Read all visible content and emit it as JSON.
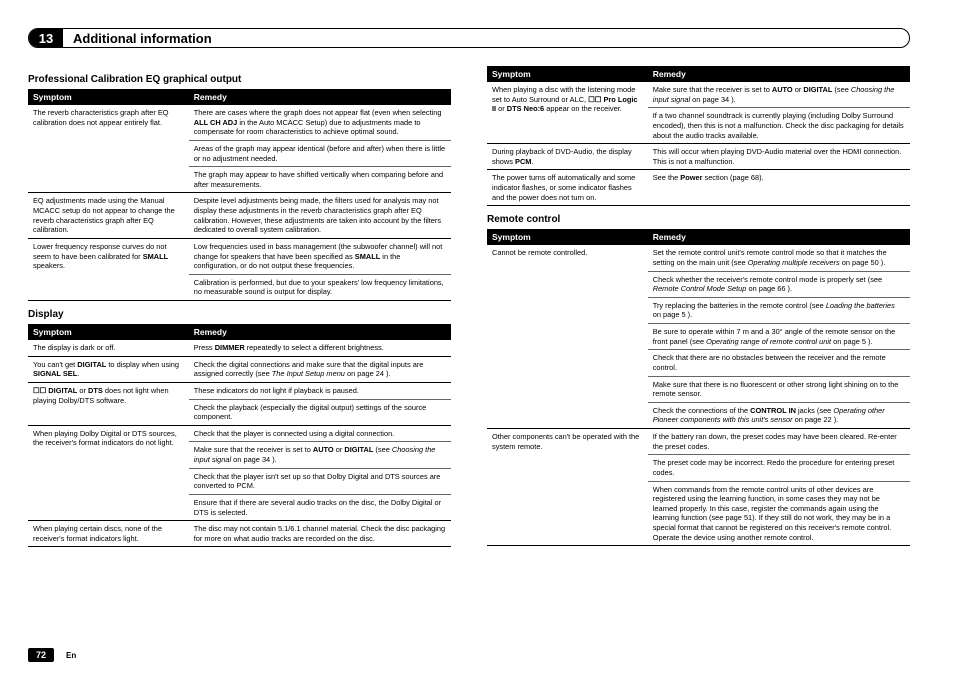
{
  "chapter": {
    "number": "13",
    "title": "Additional information"
  },
  "footer": {
    "page": "72",
    "lang": "En"
  },
  "headers": {
    "symptom": "Symptom",
    "remedy": "Remedy"
  },
  "sections": {
    "proCal": {
      "title": "Professional Calibration EQ graphical output",
      "rows": [
        {
          "s": "The reverb characteristics graph after EQ calibration does not appear entirely flat.",
          "r": [
            "There are cases where the graph does not appear flat (even when selecting <b>ALL CH ADJ</b> in the Auto MCACC Setup) due to adjustments made to compensate for room characteristics to achieve optimal sound.",
            "Areas of the graph may appear identical (before and after) when there is little or no adjustment needed.",
            "The graph may appear to have shifted vertically when comparing before and after measurements."
          ]
        },
        {
          "s": "EQ adjustments made using the Manual MCACC setup do not appear to change the reverb characteristics graph after EQ calibration.",
          "r": [
            "Despite level adjustments being made, the filters used for analysis may not display these adjustments in the reverb characteristics graph after EQ calibration. However, these adjustments are taken into account by the filters dedicated to overall system calibration."
          ]
        },
        {
          "s": "Lower frequency response curves do not seem to have been calibrated for <b>SMALL</b> speakers.",
          "r": [
            "Low frequencies used in bass management (the subwoofer channel) will not change for speakers that have been specified as <b>SMALL</b> in the configuration, or do not output these frequencies.",
            "Calibration is performed, but due to your speakers' low frequency limitations, no measurable sound is output for display."
          ]
        }
      ]
    },
    "display": {
      "title": "Display",
      "rows": [
        {
          "s": "The display is dark or off.",
          "r": [
            "Press <b>DIMMER</b> repeatedly to select a different brightness."
          ]
        },
        {
          "s": "You can't get <b>DIGITAL</b> to display when using <b>SIGNAL SEL</b>.",
          "r": [
            "Check the digital connections and make sure that the digital inputs are assigned correctly (see <span class=\"ital\">The Input Setup menu</span> on page 24 )."
          ]
        },
        {
          "s": "<b>☐☐ DIGITAL</b> or <b>DTS</b> does not light when playing Dolby/DTS software.",
          "r": [
            "These indicators do not light if playback is paused.",
            "Check the playback (especially the digital output) settings of the source component."
          ]
        },
        {
          "s": "When playing Dolby Digital or DTS sources, the receiver's format indicators do not light.",
          "r": [
            "Check that the player is connected using a digital connection.",
            "Make sure that the receiver is set to <b>AUTO</b> or <b>DIGITAL</b> (see <span class=\"ital\">Choosing the input signal</span> on page 34 ).",
            "Check that the player isn't set up so that Dolby Digital and DTS sources are converted to PCM.",
            "Ensure that if there are several audio tracks on the disc, the Dolby Digital or DTS is selected."
          ]
        },
        {
          "s": "When playing certain discs, none of the receiver's format indicators light.",
          "r": [
            "The disc may not contain 5.1/6.1 channel material. Check the disc packaging for more on what audio tracks are recorded on the disc."
          ]
        }
      ]
    },
    "cont": {
      "rows": [
        {
          "s": "When playing a disc with the listening mode set to Auto Surround or ALC, <b>☐☐ Pro Logic II</b> or <b>DTS Neo:6</b> appear on the receiver.",
          "r": [
            "Make sure that the receiver is set to <b>AUTO</b> or <b>DIGITAL</b> (see <span class=\"ital\">Choosing the input signal</span> on page 34 ).",
            "If a two channel soundtrack is currently playing (including Dolby Surround encoded), then this is not a malfunction. Check the disc packaging for details about the audio tracks available."
          ]
        },
        {
          "s": "During playback of DVD-Audio, the display shows <b>PCM</b>.",
          "r": [
            "This will occur when playing DVD-Audio material over the HDMI connection. This is not a malfunction."
          ]
        },
        {
          "s": "The power turns off automatically and some indicator flashes, or some indicator flashes and the power does not turn on.",
          "r": [
            "See the <b>Power</b> section (page 68)."
          ]
        }
      ]
    },
    "remote": {
      "title": "Remote control",
      "rows": [
        {
          "s": "Cannot be remote controlled.",
          "r": [
            "Set the remote control unit's remote control mode so that it matches the setting on the main unit (see <span class=\"ital\">Operating multiple receivers</span> on page 50 ).",
            "Check whether the receiver's remote control mode is properly set (see <span class=\"ital\">Remote Control Mode Setup</span> on page 66 ).",
            "Try replacing the batteries in the remote control (see <span class=\"ital\">Loading the batteries</span> on page 5 ).",
            "Be sure to operate within 7 m and a 30° angle of the remote sensor on the front panel (see <span class=\"ital\">Operating range of remote control unit</span> on page 5 ).",
            "Check that there are no obstacles between the receiver and the remote control.",
            "Make sure that there is no fluorescent or other strong light shining on to the remote sensor.",
            "Check the connections of the <b>CONTROL IN</b> jacks (see <span class=\"ital\">Operating other Pioneer components with this unit's sensor</span> on page 22 )."
          ]
        },
        {
          "s": "Other components can't be operated with the system remote.",
          "r": [
            "If the battery ran down, the preset codes may have been cleared. Re-enter the preset codes.",
            "The preset code may be incorrect. Redo the procedure for entering preset codes.",
            "When commands from the remote control units of other devices are registered using the learning function, in some cases they may not be learned properly. In this case, register the commands again using the learning function (see page 51). If they still do not work, they may be in a special format that cannot be registered on this receiver's remote control. Operate the device using another remote control."
          ]
        }
      ]
    }
  }
}
